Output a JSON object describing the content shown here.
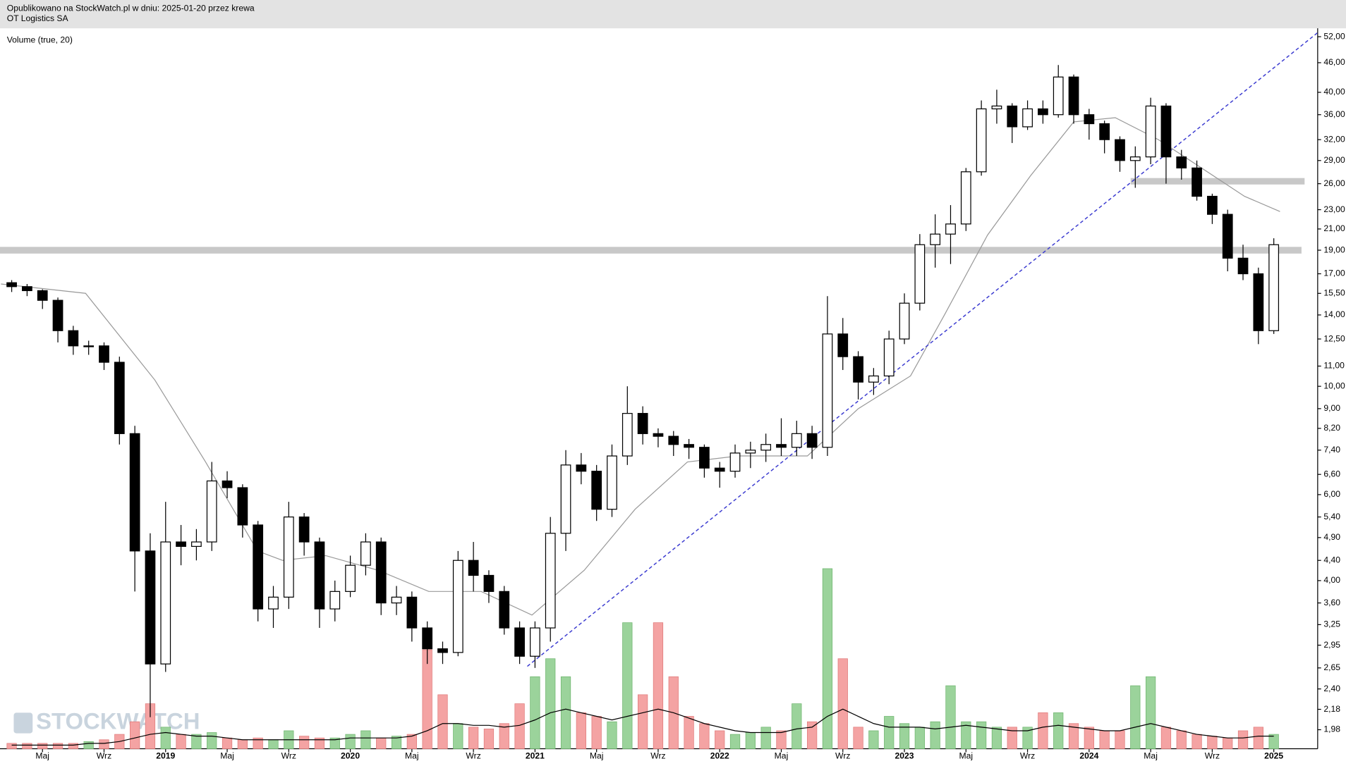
{
  "chart_data": {
    "type": "candlestick",
    "subtitle": "Opublikowano na StockWatch.pl w dniu: 2025-01-20 przez krewa",
    "title": "OT Logistics SA",
    "indicator_label": "Volume (true, 20)",
    "watermark": "STOCKWATCH",
    "log_y": true,
    "xlim": [
      1.24,
      86.85
    ],
    "ylim": [
      1.81,
      54.1
    ],
    "volume_lim": [
      0,
      100
    ],
    "up_color": "#ffffff",
    "down_color": "#000000",
    "volume_up_color": "#9bd39b",
    "volume_down_color": "#f4a3a3",
    "ma_color": "#999999",
    "volume_ma_color": "#000000",
    "trend_color": "#3a3ad0",
    "band_color": "#c8c8c8",
    "xticks": [
      {
        "value": 4,
        "label": "Maj"
      },
      {
        "value": 8,
        "label": "Wrz"
      },
      {
        "value": 12,
        "label": "2019"
      },
      {
        "value": 16,
        "label": "Maj"
      },
      {
        "value": 20,
        "label": "Wrz"
      },
      {
        "value": 24,
        "label": "2020"
      },
      {
        "value": 28,
        "label": "Maj"
      },
      {
        "value": 32,
        "label": "Wrz"
      },
      {
        "value": 36,
        "label": "2021"
      },
      {
        "value": 40,
        "label": "Maj"
      },
      {
        "value": 44,
        "label": "Wrz"
      },
      {
        "value": 48,
        "label": "2022"
      },
      {
        "value": 52,
        "label": "Maj"
      },
      {
        "value": 56,
        "label": "Wrz"
      },
      {
        "value": 60,
        "label": "2023"
      },
      {
        "value": 64,
        "label": "Maj"
      },
      {
        "value": 68,
        "label": "Wrz"
      },
      {
        "value": 72,
        "label": "2024"
      },
      {
        "value": 76,
        "label": "Maj"
      },
      {
        "value": 80,
        "label": "Wrz"
      },
      {
        "value": 84,
        "label": "2025"
      }
    ],
    "yticks": [
      {
        "value": 52,
        "label": "52,00"
      },
      {
        "value": 46,
        "label": "46,00"
      },
      {
        "value": 40,
        "label": "40,00"
      },
      {
        "value": 36,
        "label": "36,00"
      },
      {
        "value": 32,
        "label": "32,00"
      },
      {
        "value": 29,
        "label": "29,00"
      },
      {
        "value": 26,
        "label": "26,00"
      },
      {
        "value": 23,
        "label": "23,00"
      },
      {
        "value": 21,
        "label": "21,00"
      },
      {
        "value": 19,
        "label": "19,00"
      },
      {
        "value": 17,
        "label": "17,00"
      },
      {
        "value": 15.5,
        "label": "15,50"
      },
      {
        "value": 14,
        "label": "14,00"
      },
      {
        "value": 12.5,
        "label": "12,50"
      },
      {
        "value": 11,
        "label": "11,00"
      },
      {
        "value": 10,
        "label": "10,00"
      },
      {
        "value": 9,
        "label": "9,00"
      },
      {
        "value": 8.2,
        "label": "8,20"
      },
      {
        "value": 7.4,
        "label": "7,40"
      },
      {
        "value": 6.6,
        "label": "6,60"
      },
      {
        "value": 6,
        "label": "6,00"
      },
      {
        "value": 5.4,
        "label": "5,40"
      },
      {
        "value": 4.9,
        "label": "4,90"
      },
      {
        "value": 4.4,
        "label": "4,40"
      },
      {
        "value": 4,
        "label": "4,00"
      },
      {
        "value": 3.6,
        "label": "3,60"
      },
      {
        "value": 3.25,
        "label": "3,25"
      },
      {
        "value": 2.95,
        "label": "2,95"
      },
      {
        "value": 2.65,
        "label": "2,65"
      },
      {
        "value": 2.4,
        "label": "2,40"
      },
      {
        "value": 2.18,
        "label": "2,18"
      },
      {
        "value": 1.98,
        "label": "1,98"
      }
    ],
    "x": [
      2,
      3,
      4,
      5,
      6,
      7,
      8,
      9,
      10,
      11,
      12,
      13,
      14,
      15,
      16,
      17,
      18,
      19,
      20,
      21,
      22,
      23,
      24,
      25,
      26,
      27,
      28,
      29,
      30,
      31,
      32,
      33,
      34,
      35,
      36,
      37,
      38,
      39,
      40,
      41,
      42,
      43,
      44,
      45,
      46,
      47,
      48,
      49,
      50,
      51,
      52,
      53,
      54,
      55,
      56,
      57,
      58,
      59,
      60,
      61,
      62,
      63,
      64,
      65,
      66,
      67,
      68,
      69,
      70,
      71,
      72,
      73,
      74,
      75,
      76,
      77,
      78,
      79,
      80,
      81,
      82,
      83,
      84
    ],
    "open": [
      16.3,
      16.0,
      15.7,
      15.0,
      13.0,
      12.1,
      12.1,
      11.2,
      8.0,
      4.6,
      2.7,
      4.8,
      4.7,
      4.8,
      6.4,
      6.2,
      5.2,
      3.5,
      3.7,
      5.4,
      4.8,
      3.5,
      3.8,
      4.3,
      4.8,
      3.6,
      3.7,
      3.2,
      2.9,
      2.85,
      4.4,
      4.1,
      3.8,
      3.2,
      2.8,
      3.2,
      5.0,
      6.9,
      6.7,
      5.6,
      7.2,
      8.8,
      8.0,
      7.9,
      7.6,
      7.5,
      6.8,
      6.7,
      7.3,
      7.4,
      7.6,
      7.5,
      8.0,
      7.5,
      12.8,
      11.5,
      10.2,
      10.5,
      12.5,
      14.8,
      19.5,
      20.5,
      21.5,
      27.5,
      37.0,
      37.5,
      34.0,
      37.0,
      36.0,
      43.0,
      36.0,
      34.5,
      32.0,
      29.0,
      29.5,
      37.5,
      29.5,
      28.0,
      24.5,
      22.5,
      18.3,
      17.0,
      13.0
    ],
    "high": [
      16.5,
      16.2,
      15.8,
      15.2,
      13.3,
      12.4,
      12.3,
      11.5,
      8.3,
      5.0,
      5.8,
      5.2,
      5.1,
      7.0,
      6.7,
      6.3,
      5.3,
      3.9,
      5.8,
      5.5,
      4.9,
      4.0,
      4.5,
      5.0,
      4.9,
      3.9,
      3.8,
      3.3,
      3.0,
      4.6,
      4.8,
      4.2,
      3.9,
      3.3,
      3.3,
      5.4,
      7.4,
      7.3,
      6.9,
      7.6,
      10.0,
      9.1,
      8.2,
      8.1,
      7.8,
      7.6,
      7.0,
      7.6,
      7.7,
      8.0,
      8.6,
      8.5,
      8.3,
      15.3,
      13.8,
      11.8,
      10.9,
      13.0,
      15.5,
      20.5,
      22.5,
      23.5,
      28.0,
      38.5,
      40.5,
      38.0,
      38.5,
      38.5,
      45.5,
      43.5,
      37.0,
      35.0,
      32.5,
      31.0,
      39.0,
      38.0,
      30.5,
      29.0,
      24.8,
      23.0,
      19.5,
      17.5,
      20.1
    ],
    "low": [
      15.6,
      15.3,
      14.4,
      12.3,
      11.6,
      11.6,
      10.8,
      7.6,
      3.8,
      2.1,
      2.6,
      4.3,
      4.4,
      4.6,
      5.9,
      4.9,
      3.3,
      3.2,
      3.5,
      4.5,
      3.2,
      3.3,
      3.7,
      4.1,
      3.4,
      3.4,
      3.0,
      2.7,
      2.7,
      2.8,
      3.8,
      3.6,
      3.1,
      2.7,
      2.65,
      3.0,
      4.6,
      6.3,
      5.3,
      5.4,
      6.9,
      7.6,
      7.5,
      7.2,
      7.1,
      6.5,
      6.2,
      6.5,
      6.8,
      7.0,
      7.2,
      7.2,
      7.1,
      7.2,
      10.8,
      9.4,
      9.6,
      10.1,
      12.2,
      14.3,
      17.5,
      17.8,
      20.8,
      27.0,
      34.5,
      31.5,
      33.5,
      34.5,
      35.5,
      34.5,
      32.0,
      30.0,
      27.5,
      25.5,
      28.5,
      26.0,
      26.5,
      24.0,
      21.5,
      17.2,
      16.5,
      12.2,
      12.8
    ],
    "close": [
      16.0,
      15.7,
      15.0,
      13.0,
      12.1,
      12.1,
      11.2,
      8.0,
      4.6,
      2.7,
      4.8,
      4.7,
      4.8,
      6.4,
      6.2,
      5.2,
      3.5,
      3.7,
      5.4,
      4.8,
      3.5,
      3.8,
      4.3,
      4.8,
      3.6,
      3.7,
      3.2,
      2.9,
      2.85,
      4.4,
      4.1,
      3.8,
      3.2,
      2.8,
      3.2,
      5.0,
      6.9,
      6.7,
      5.6,
      7.2,
      8.8,
      8.0,
      7.9,
      7.6,
      7.5,
      6.8,
      6.7,
      7.3,
      7.4,
      7.6,
      7.5,
      8.0,
      7.5,
      12.8,
      11.5,
      10.2,
      10.5,
      12.5,
      14.8,
      19.5,
      20.5,
      21.5,
      27.5,
      37.0,
      37.5,
      34.0,
      37.0,
      36.0,
      43.0,
      36.0,
      34.5,
      32.0,
      29.0,
      29.5,
      37.5,
      29.5,
      28.0,
      24.5,
      22.5,
      18.3,
      17.0,
      13.0,
      19.5
    ],
    "volume": [
      3,
      3,
      3,
      3,
      3,
      4,
      5,
      8,
      15,
      25,
      12,
      8,
      8,
      9,
      6,
      5,
      6,
      5,
      10,
      7,
      6,
      6,
      8,
      10,
      6,
      7,
      8,
      55,
      30,
      14,
      12,
      11,
      14,
      25,
      40,
      50,
      40,
      20,
      18,
      15,
      70,
      30,
      70,
      40,
      18,
      14,
      10,
      8,
      9,
      12,
      10,
      25,
      15,
      100,
      50,
      12,
      10,
      18,
      14,
      12,
      15,
      35,
      15,
      15,
      12,
      12,
      12,
      20,
      20,
      14,
      12,
      10,
      10,
      35,
      40,
      12,
      10,
      8,
      7,
      6,
      10,
      12,
      8
    ],
    "volume_ma": [
      2,
      2,
      2,
      2,
      2,
      3,
      3,
      4,
      6,
      8,
      9,
      8,
      7,
      7,
      6,
      5,
      5,
      5,
      5,
      5,
      5,
      5,
      6,
      6,
      6,
      6,
      7,
      10,
      14,
      14,
      13,
      13,
      12,
      13,
      16,
      20,
      22,
      20,
      18,
      16,
      18,
      20,
      22,
      20,
      17,
      14,
      12,
      10,
      9,
      9,
      9,
      11,
      12,
      18,
      22,
      18,
      14,
      12,
      12,
      12,
      11,
      12,
      13,
      12,
      11,
      10,
      10,
      12,
      13,
      12,
      11,
      10,
      10,
      12,
      14,
      12,
      10,
      8,
      7,
      6,
      6,
      7,
      7
    ],
    "ma": {
      "x": [
        1.3,
        6.8,
        11.3,
        14.6,
        17.97,
        19.6,
        22.4,
        25.8,
        29.1,
        32.5,
        35.8,
        39.2,
        42.5,
        45.9,
        49.2,
        53.7,
        57,
        60.4,
        62.6,
        65.4,
        68.2,
        71,
        73.7,
        76.5,
        79.3,
        82.1,
        84.4
      ],
      "values": [
        16.2,
        15.5,
        10.3,
        7.0,
        4.6,
        4.4,
        4.5,
        4.2,
        3.8,
        3.8,
        3.4,
        4.2,
        5.6,
        7.0,
        7.2,
        7.2,
        9.0,
        10.5,
        14.0,
        20.4,
        27.0,
        34.8,
        35.5,
        32.0,
        28.0,
        24.5,
        22.8
      ]
    },
    "trend_line": {
      "x": [
        35.5,
        86.85
      ],
      "y": [
        2.67,
        53
      ]
    },
    "bands": [
      {
        "x": [
          1.24,
          85.8
        ],
        "y": [
          18.7,
          19.3
        ]
      },
      {
        "x": [
          74.7,
          86.0
        ],
        "y": [
          25.9,
          26.7
        ]
      }
    ]
  }
}
